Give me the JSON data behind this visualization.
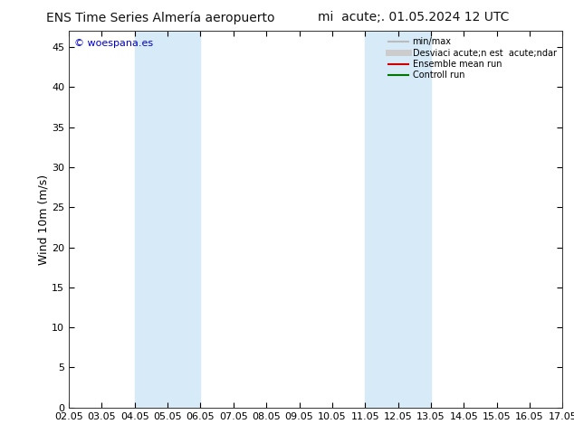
{
  "title_left": "ENS Time Series Almería aeropuerto",
  "title_right": "mi  acute;. 01.05.2024 12 UTC",
  "ylabel": "Wind 10m (m/s)",
  "watermark": "© woespana.es",
  "watermark_color": "#0000cc",
  "ylim": [
    0,
    47
  ],
  "yticks": [
    0,
    5,
    10,
    15,
    20,
    25,
    30,
    35,
    40,
    45
  ],
  "xtick_labels": [
    "02.05",
    "03.05",
    "04.05",
    "05.05",
    "06.05",
    "07.05",
    "08.05",
    "09.05",
    "10.05",
    "11.05",
    "12.05",
    "13.05",
    "14.05",
    "15.05",
    "16.05",
    "17.05"
  ],
  "shade_bands": [
    {
      "start": 2,
      "end": 4,
      "color": "#d6eaf8"
    },
    {
      "start": 9,
      "end": 11,
      "color": "#d6eaf8"
    }
  ],
  "legend_items": [
    {
      "label": "min/max",
      "color": "#bbbbbb",
      "lw": 1.5,
      "style": "-"
    },
    {
      "label": "Desviaci acute;n est  acute;ndar",
      "color": "#cccccc",
      "lw": 5,
      "style": "-"
    },
    {
      "label": "Ensemble mean run",
      "color": "#cc0000",
      "lw": 1.5,
      "style": "-"
    },
    {
      "label": "Controll run",
      "color": "#007700",
      "lw": 1.5,
      "style": "-"
    }
  ],
  "background_color": "#ffffff",
  "title_fontsize": 10,
  "tick_fontsize": 8,
  "ylabel_fontsize": 9
}
